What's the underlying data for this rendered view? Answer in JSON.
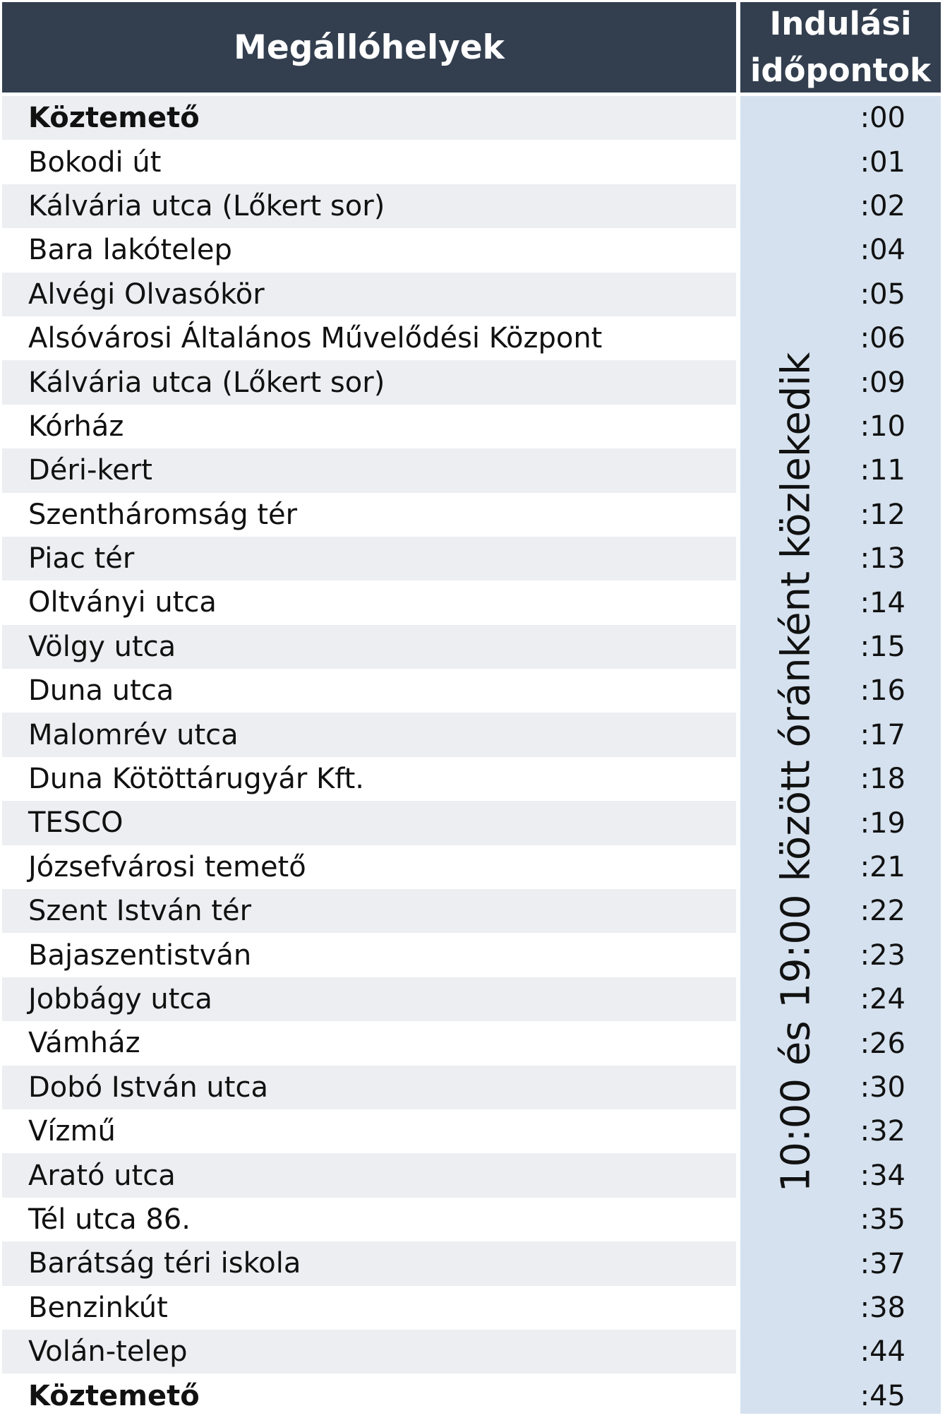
{
  "header": {
    "stops_label": "Megállóhelyek",
    "times_label_line1": "Indulási",
    "times_label_line2": "időpontok"
  },
  "note": "10:00 és 19:00 között óránként közlekedik",
  "stops": [
    {
      "name": "Köztemető",
      "time": ":00"
    },
    {
      "name": "Bokodi út",
      "time": ":01"
    },
    {
      "name": "Kálvária utca (Lőkert sor)",
      "time": ":02"
    },
    {
      "name": "Bara lakótelep",
      "time": ":04"
    },
    {
      "name": "Alvégi Olvasókör",
      "time": ":05"
    },
    {
      "name": "Alsóvárosi Általános Művelődési Központ",
      "time": ":06"
    },
    {
      "name": "Kálvária utca (Lőkert sor)",
      "time": ":09"
    },
    {
      "name": "Kórház",
      "time": ":10"
    },
    {
      "name": "Déri-kert",
      "time": ":11"
    },
    {
      "name": "Szentháromság tér",
      "time": ":12"
    },
    {
      "name": "Piac tér",
      "time": ":13"
    },
    {
      "name": "Oltványi utca",
      "time": ":14"
    },
    {
      "name": "Völgy utca",
      "time": ":15"
    },
    {
      "name": "Duna utca",
      "time": ":16"
    },
    {
      "name": "Malomrév utca",
      "time": ":17"
    },
    {
      "name": "Duna Kötöttárugyár Kft.",
      "time": ":18"
    },
    {
      "name": "TESCO",
      "time": ":19"
    },
    {
      "name": "Józsefvárosi temető",
      "time": ":21"
    },
    {
      "name": "Szent István tér",
      "time": ":22"
    },
    {
      "name": "Bajaszentistván",
      "time": ":23"
    },
    {
      "name": "Jobbágy utca",
      "time": ":24"
    },
    {
      "name": "Vámház",
      "time": ":26"
    },
    {
      "name": "Dobó István utca",
      "time": ":30"
    },
    {
      "name": "Vízmű",
      "time": ":32"
    },
    {
      "name": "Arató utca",
      "time": ":34"
    },
    {
      "name": "Tél utca 86.",
      "time": ":35"
    },
    {
      "name": "Barátság téri iskola",
      "time": ":37"
    },
    {
      "name": "Benzinkút",
      "time": ":38"
    },
    {
      "name": "Volán-telep",
      "time": ":44"
    },
    {
      "name": "Köztemető",
      "time": ":45"
    }
  ],
  "colors": {
    "header_bg": "#333f4f",
    "header_text": "#ffffff",
    "row_shade": "#eceef1",
    "times_column_bg": "#d5e1ee"
  }
}
